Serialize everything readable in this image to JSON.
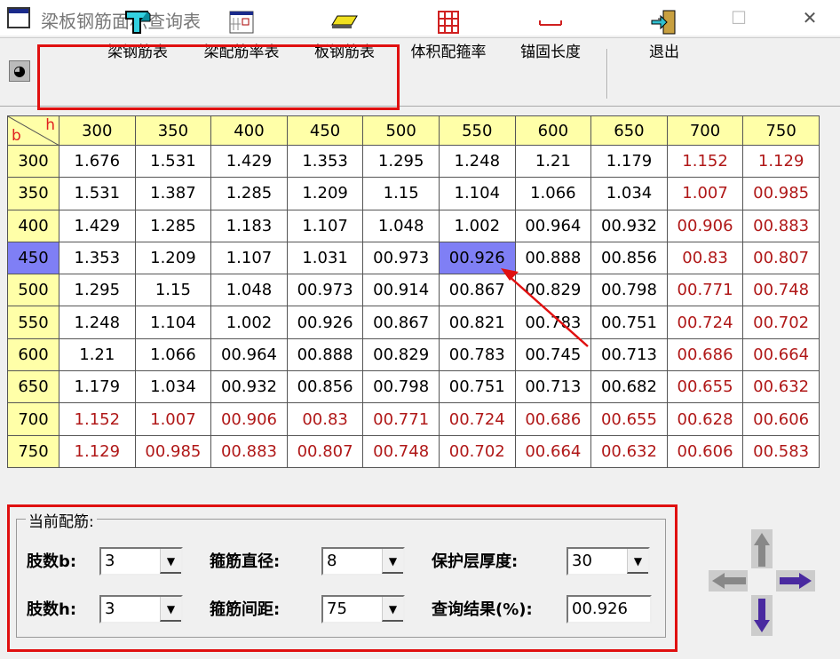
{
  "window": {
    "title": "梁板钢筋面积查询表",
    "minimize": "—",
    "maximize": "☐",
    "close": "✕"
  },
  "toolbar": {
    "items": [
      {
        "label": "梁钢筋表",
        "icon": "t-beam-icon"
      },
      {
        "label": "梁配筋率表",
        "icon": "calendar-table-icon"
      },
      {
        "label": "板钢筋表",
        "icon": "slab-icon"
      },
      {
        "label": "体积配箍率",
        "icon": "grid-icon"
      },
      {
        "label": "锚固长度",
        "icon": "anchor-length-icon"
      },
      {
        "label": "退出",
        "icon": "exit-door-icon"
      }
    ]
  },
  "table": {
    "corner_b": "b",
    "corner_h": "h",
    "columns": [
      "300",
      "350",
      "400",
      "450",
      "500",
      "550",
      "600",
      "650",
      "700",
      "750"
    ],
    "rows": [
      {
        "h": "300",
        "v": [
          "1.676",
          "1.531",
          "1.429",
          "1.353",
          "1.295",
          "1.248",
          "1.21",
          "1.179",
          "1.152",
          "1.129"
        ]
      },
      {
        "h": "350",
        "v": [
          "1.531",
          "1.387",
          "1.285",
          "1.209",
          "1.15",
          "1.104",
          "1.066",
          "1.034",
          "1.007",
          "00.985"
        ]
      },
      {
        "h": "400",
        "v": [
          "1.429",
          "1.285",
          "1.183",
          "1.107",
          "1.048",
          "1.002",
          "00.964",
          "00.932",
          "00.906",
          "00.883"
        ]
      },
      {
        "h": "450",
        "v": [
          "1.353",
          "1.209",
          "1.107",
          "1.031",
          "00.973",
          "00.926",
          "00.888",
          "00.856",
          "00.83",
          "00.807"
        ]
      },
      {
        "h": "500",
        "v": [
          "1.295",
          "1.15",
          "1.048",
          "00.973",
          "00.914",
          "00.867",
          "00.829",
          "00.798",
          "00.771",
          "00.748"
        ]
      },
      {
        "h": "550",
        "v": [
          "1.248",
          "1.104",
          "1.002",
          "00.926",
          "00.867",
          "00.821",
          "00.783",
          "00.751",
          "00.724",
          "00.702"
        ]
      },
      {
        "h": "600",
        "v": [
          "1.21",
          "1.066",
          "00.964",
          "00.888",
          "00.829",
          "00.783",
          "00.745",
          "00.713",
          "00.686",
          "00.664"
        ]
      },
      {
        "h": "650",
        "v": [
          "1.179",
          "1.034",
          "00.932",
          "00.856",
          "00.798",
          "00.751",
          "00.713",
          "00.682",
          "00.655",
          "00.632"
        ]
      },
      {
        "h": "700",
        "v": [
          "1.152",
          "1.007",
          "00.906",
          "00.83",
          "00.771",
          "00.724",
          "00.686",
          "00.655",
          "00.628",
          "00.606"
        ]
      },
      {
        "h": "750",
        "v": [
          "1.129",
          "00.985",
          "00.883",
          "00.807",
          "00.748",
          "00.702",
          "00.664",
          "00.632",
          "00.606",
          "00.583"
        ]
      }
    ],
    "selected_row": "450",
    "selected_col": "550",
    "colors": {
      "header": "#ffffa8",
      "selected": "#7f7ff5",
      "red_text": "#b01818"
    }
  },
  "panel": {
    "legend": "当前配筋:",
    "legs_b_label": "肢数b:",
    "legs_b": "3",
    "legs_h_label": "肢数h:",
    "legs_h": "3",
    "stirrup_dia_label": "箍筋直径:",
    "stirrup_dia": "8",
    "stirrup_spacing_label": "箍筋间距:",
    "stirrup_spacing": "75",
    "cover_label": "保护层厚度:",
    "cover": "30",
    "result_label": "查询结果(%):",
    "result": "00.926"
  },
  "annotation_color": "#e01010"
}
